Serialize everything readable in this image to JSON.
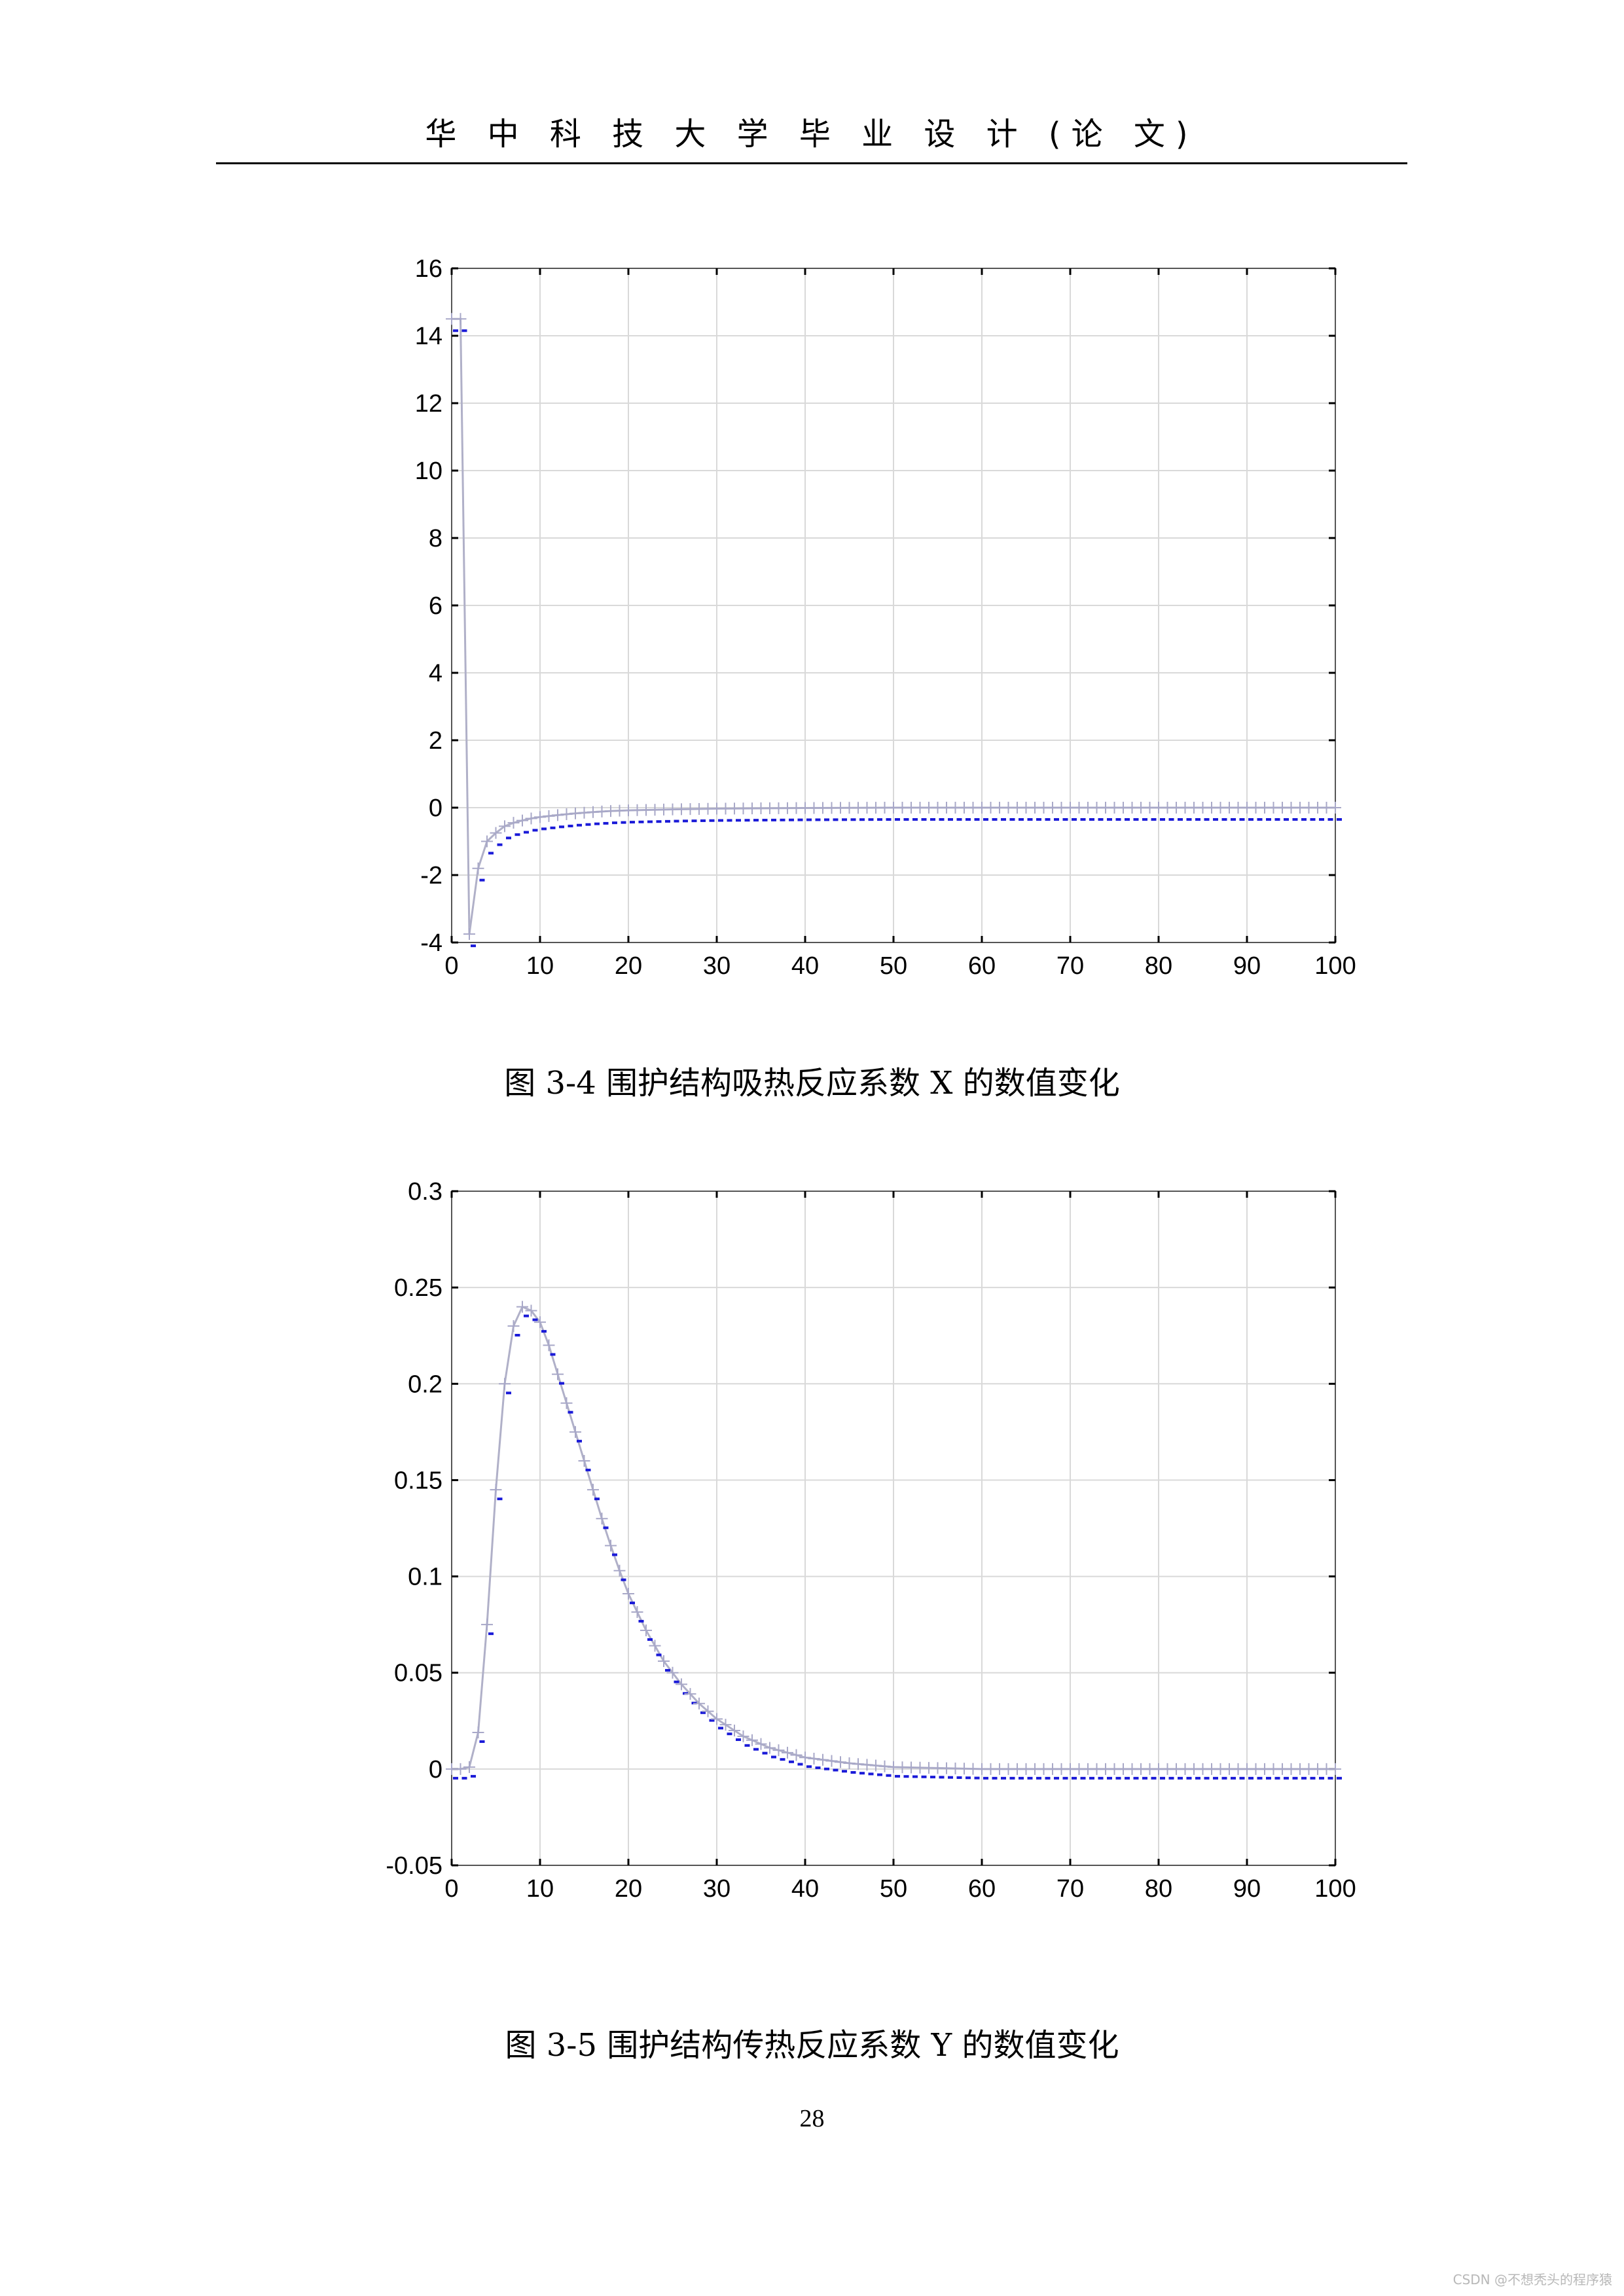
{
  "header": {
    "title": "华 中 科 技 大 学 毕 业 设 计 (论 文)"
  },
  "chart_data": [
    {
      "type": "line",
      "title": "",
      "xlabel": "",
      "ylabel": "",
      "xlim": [
        0,
        100
      ],
      "ylim": [
        -4,
        16
      ],
      "xticks": [
        "0",
        "10",
        "20",
        "30",
        "40",
        "50",
        "60",
        "70",
        "80",
        "90",
        "100"
      ],
      "yticks": [
        "16",
        "14",
        "12",
        "10",
        "8",
        "6",
        "4",
        "2",
        "0",
        "-2",
        "-4"
      ],
      "grid": true,
      "legend": "none",
      "series": [
        {
          "x": [
            0,
            1,
            2,
            3,
            4,
            5,
            6,
            7,
            8,
            9,
            10,
            12,
            14,
            16,
            18,
            20,
            25,
            30,
            35,
            40,
            50,
            60,
            70,
            80,
            90,
            100
          ],
          "y": [
            14.5,
            14.5,
            -3.75,
            -1.8,
            -1.0,
            -0.75,
            -0.55,
            -0.45,
            -0.38,
            -0.32,
            -0.28,
            -0.22,
            -0.17,
            -0.13,
            -0.1,
            -0.08,
            -0.05,
            -0.03,
            -0.02,
            -0.01,
            0,
            0,
            0,
            0,
            0,
            0
          ],
          "color": "#b0b0c8"
        }
      ],
      "ytick_values": [
        16,
        14,
        12,
        10,
        8,
        6,
        4,
        2,
        0,
        -2,
        -4
      ],
      "xtick_values": [
        0,
        10,
        20,
        30,
        40,
        50,
        60,
        70,
        80,
        90,
        100
      ],
      "caption": "图  3-4  围护结构吸热反应系数 X 的数值变化"
    },
    {
      "type": "line",
      "title": "",
      "xlabel": "",
      "ylabel": "",
      "xlim": [
        0,
        100
      ],
      "ylim": [
        -0.05,
        0.3
      ],
      "xticks": [
        "0",
        "10",
        "20",
        "30",
        "40",
        "50",
        "60",
        "70",
        "80",
        "90",
        "100"
      ],
      "yticks": [
        "0.3",
        "0.25",
        "0.2",
        "0.15",
        "0.1",
        "0.05",
        "0",
        "-0.05"
      ],
      "grid": true,
      "legend": "none",
      "series": [
        {
          "x": [
            0,
            1,
            2,
            3,
            4,
            5,
            6,
            7,
            8,
            9,
            10,
            11,
            12,
            13,
            14,
            15,
            16,
            17,
            18,
            19,
            20,
            22,
            24,
            26,
            28,
            30,
            33,
            36,
            40,
            45,
            50,
            60,
            70,
            80,
            90,
            100
          ],
          "y": [
            0,
            0,
            0.001,
            0.019,
            0.075,
            0.145,
            0.2,
            0.23,
            0.24,
            0.238,
            0.232,
            0.22,
            0.205,
            0.19,
            0.175,
            0.16,
            0.145,
            0.13,
            0.116,
            0.103,
            0.091,
            0.072,
            0.056,
            0.044,
            0.034,
            0.026,
            0.017,
            0.011,
            0.006,
            0.003,
            0.001,
            0,
            0,
            0,
            0,
            0
          ],
          "color": "#b0b0c8"
        }
      ],
      "ytick_values": [
        0.3,
        0.25,
        0.2,
        0.15,
        0.1,
        0.05,
        0,
        -0.05
      ],
      "xtick_values": [
        0,
        10,
        20,
        30,
        40,
        50,
        60,
        70,
        80,
        90,
        100
      ],
      "caption": "图  3-5  围护结构传热反应系数 Y 的数值变化"
    }
  ],
  "page_number": "28",
  "watermark": "CSDN @不想秃头的程序猿"
}
